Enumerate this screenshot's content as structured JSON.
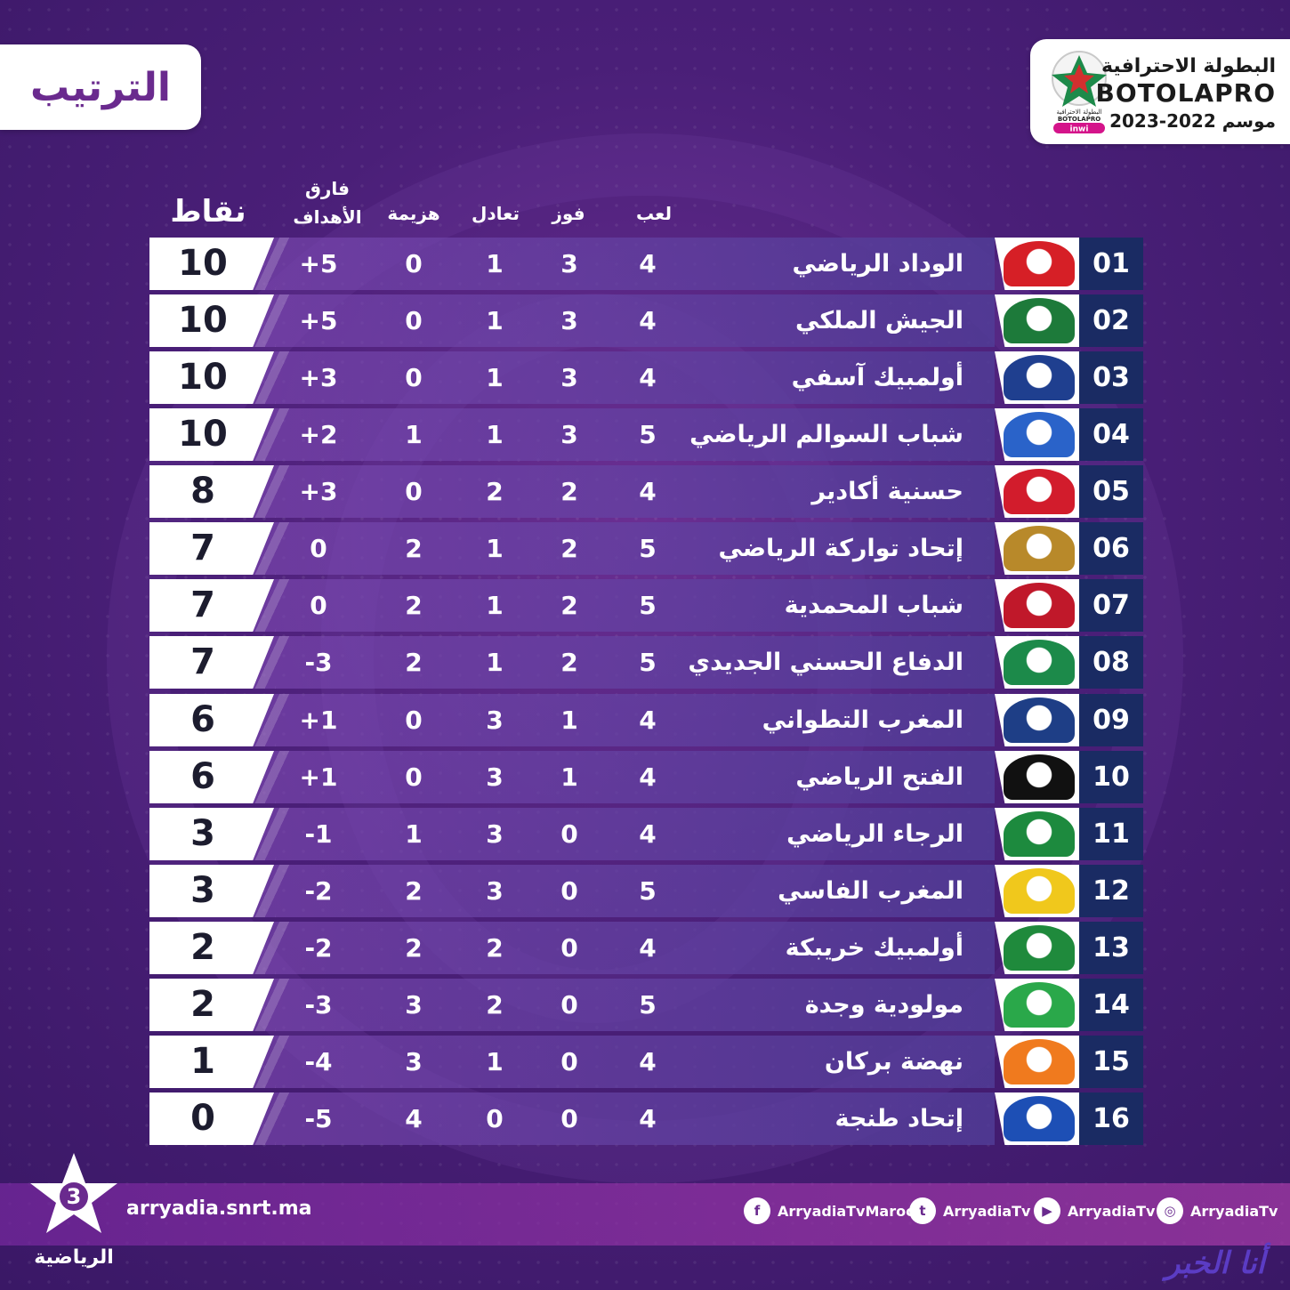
{
  "title": "الترتيب",
  "league": {
    "line1": "البطولة الاحترافية",
    "line2": "BOTOLAPRO",
    "season": "موسم 2022-2023",
    "emblem_text": "البطولة الاحترافية",
    "emblem_brand": "BOTOLAPRO",
    "sponsor": "inwi"
  },
  "columns": {
    "played": "لعب",
    "won": "فوز",
    "drawn": "تعادل",
    "lost": "هزيمة",
    "goal_diff_line1": "فارق",
    "goal_diff_line2": "الأهداف",
    "points": "نقاط"
  },
  "rows": [
    {
      "rank": "01",
      "team": "الوداد الرياضي",
      "played": "4",
      "won": "3",
      "drawn": "1",
      "lost": "0",
      "gd": "+5",
      "points": "10",
      "logo": "wydad-logo",
      "color": "#d61f26"
    },
    {
      "rank": "02",
      "team": "الجيش الملكي",
      "played": "4",
      "won": "3",
      "drawn": "1",
      "lost": "0",
      "gd": "+5",
      "points": "10",
      "logo": "far-logo",
      "color": "#1d7a3a"
    },
    {
      "rank": "03",
      "team": "أولمبيك آسفي",
      "played": "4",
      "won": "3",
      "drawn": "1",
      "lost": "0",
      "gd": "+3",
      "points": "10",
      "logo": "ocs-logo",
      "color": "#1f3f8f"
    },
    {
      "rank": "04",
      "team": "شباب السوالم الرياضي",
      "played": "5",
      "won": "3",
      "drawn": "1",
      "lost": "1",
      "gd": "+2",
      "points": "10",
      "logo": "jss-logo",
      "color": "#2a63c9"
    },
    {
      "rank": "05",
      "team": "حسنية أكادير",
      "played": "4",
      "won": "2",
      "drawn": "2",
      "lost": "0",
      "gd": "+3",
      "points": "8",
      "logo": "husa-logo",
      "color": "#d21c2c"
    },
    {
      "rank": "06",
      "team": "إتحاد تواركة الرياضي",
      "played": "5",
      "won": "2",
      "drawn": "1",
      "lost": "2",
      "gd": "0",
      "points": "7",
      "logo": "ust-logo",
      "color": "#b8892a"
    },
    {
      "rank": "07",
      "team": "شباب المحمدية",
      "played": "5",
      "won": "2",
      "drawn": "1",
      "lost": "2",
      "gd": "0",
      "points": "7",
      "logo": "scch-logo",
      "color": "#c0182a"
    },
    {
      "rank": "08",
      "team": "الدفاع الحسني الجديدي",
      "played": "5",
      "won": "2",
      "drawn": "1",
      "lost": "2",
      "gd": "-3",
      "points": "7",
      "logo": "dhj-logo",
      "color": "#1c8a4a"
    },
    {
      "rank": "09",
      "team": "المغرب التطواني",
      "played": "4",
      "won": "1",
      "drawn": "3",
      "lost": "0",
      "gd": "+1",
      "points": "6",
      "logo": "mat-logo",
      "color": "#1e3e86"
    },
    {
      "rank": "10",
      "team": "الفتح الرياضي",
      "played": "4",
      "won": "1",
      "drawn": "3",
      "lost": "0",
      "gd": "+1",
      "points": "6",
      "logo": "fus-logo",
      "color": "#111111"
    },
    {
      "rank": "11",
      "team": "الرجاء الرياضي",
      "played": "4",
      "won": "0",
      "drawn": "3",
      "lost": "1",
      "gd": "-1",
      "points": "3",
      "logo": "raja-logo",
      "color": "#1d8a3e"
    },
    {
      "rank": "12",
      "team": "المغرب الفاسي",
      "played": "5",
      "won": "0",
      "drawn": "3",
      "lost": "2",
      "gd": "-2",
      "points": "3",
      "logo": "mas-logo",
      "color": "#f0c81c"
    },
    {
      "rank": "13",
      "team": "أولمبيك خريبكة",
      "played": "4",
      "won": "0",
      "drawn": "2",
      "lost": "2",
      "gd": "-2",
      "points": "2",
      "logo": "ock-logo",
      "color": "#1f8a3c"
    },
    {
      "rank": "14",
      "team": "مولودية وجدة",
      "played": "5",
      "won": "0",
      "drawn": "2",
      "lost": "3",
      "gd": "-3",
      "points": "2",
      "logo": "mco-logo",
      "color": "#2aa84a"
    },
    {
      "rank": "15",
      "team": "نهضة بركان",
      "played": "4",
      "won": "0",
      "drawn": "1",
      "lost": "3",
      "gd": "-4",
      "points": "1",
      "logo": "rsb-logo",
      "color": "#f07a1e"
    },
    {
      "rank": "16",
      "team": "إتحاد طنجة",
      "played": "4",
      "won": "0",
      "drawn": "0",
      "lost": "4",
      "gd": "-5",
      "points": "0",
      "logo": "irt-logo",
      "color": "#1d4fb5"
    }
  ],
  "footer": {
    "channel": "الرياضية",
    "channel_number": "3",
    "website": "arryadia.snrt.ma",
    "socials": [
      {
        "icon": "facebook-icon",
        "glyph": "f",
        "handle": "ArryadiaTvMaroc"
      },
      {
        "icon": "twitter-icon",
        "glyph": "t",
        "handle": "ArryadiaTv"
      },
      {
        "icon": "youtube-icon",
        "glyph": "▶",
        "handle": "ArryadiaTv"
      },
      {
        "icon": "instagram-icon",
        "glyph": "◎",
        "handle": "ArryadiaTv"
      }
    ],
    "watermark": "أنا الخبر"
  }
}
